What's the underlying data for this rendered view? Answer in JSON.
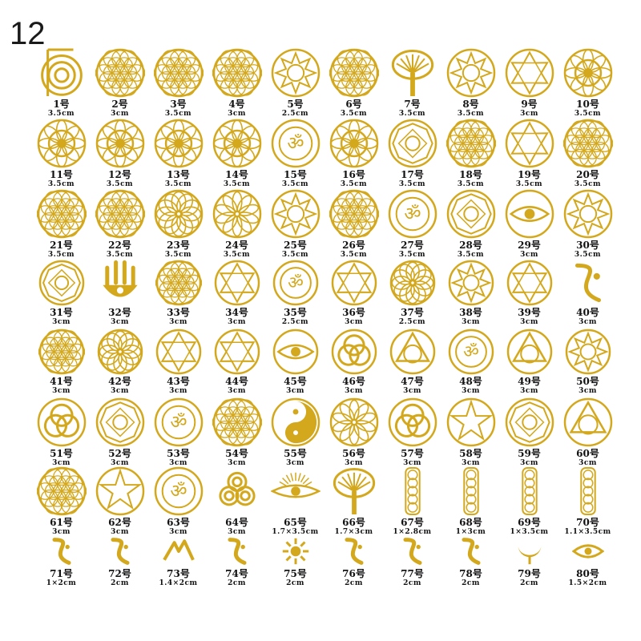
{
  "page_number": "12",
  "colors": {
    "gold": "#d4a81c",
    "gold_dark": "#b58a10",
    "text": "#111111"
  },
  "items": [
    {
      "label": "1号",
      "size": "3.5cm",
      "icon": "cho-ku-rei-spiral-icon"
    },
    {
      "label": "2号",
      "size": "3cm",
      "icon": "hexagon-flower-icon"
    },
    {
      "label": "3号",
      "size": "3.5cm",
      "icon": "flower-of-life-icon"
    },
    {
      "label": "4号",
      "size": "3cm",
      "icon": "flower-of-life-icon"
    },
    {
      "label": "5号",
      "size": "2.5cm",
      "icon": "star-circle-icon"
    },
    {
      "label": "6号",
      "size": "3.5cm",
      "icon": "flower-of-life-hexagon-icon"
    },
    {
      "label": "7号",
      "size": "3.5cm",
      "icon": "tree-of-life-icon"
    },
    {
      "label": "8号",
      "size": "3.5cm",
      "icon": "star-mandala-icon"
    },
    {
      "label": "9号",
      "size": "3cm",
      "icon": "star-of-david-mandala-icon"
    },
    {
      "label": "10号",
      "size": "3.5cm",
      "icon": "heart-chakra-lotus-icon"
    },
    {
      "label": "11号",
      "size": "3.5cm",
      "icon": "sacral-chakra-icon"
    },
    {
      "label": "12号",
      "size": "3.5cm",
      "icon": "throat-chakra-icon"
    },
    {
      "label": "13号",
      "size": "3.5cm",
      "icon": "solar-plexus-chakra-icon"
    },
    {
      "label": "14号",
      "size": "3.5cm",
      "icon": "third-eye-chakra-icon"
    },
    {
      "label": "15号",
      "size": "3.5cm",
      "icon": "om-lotus-icon"
    },
    {
      "label": "16号",
      "size": "3.5cm",
      "icon": "root-chakra-icon"
    },
    {
      "label": "17号",
      "size": "3.5cm",
      "icon": "metatron-cube-icon"
    },
    {
      "label": "18号",
      "size": "3.5cm",
      "icon": "yin-yang-flower-icon"
    },
    {
      "label": "19号",
      "size": "3.5cm",
      "icon": "merkaba-star-icon"
    },
    {
      "label": "20号",
      "size": "3.5cm",
      "icon": "flower-of-life-icon"
    },
    {
      "label": "21号",
      "size": "3.5cm",
      "icon": "flower-of-life-icon"
    },
    {
      "label": "22号",
      "size": "3.5cm",
      "icon": "hexagon-flower-icon"
    },
    {
      "label": "23号",
      "size": "3.5cm",
      "icon": "swirl-mandala-icon"
    },
    {
      "label": "24号",
      "size": "3.5cm",
      "icon": "lotus-mandala-icon"
    },
    {
      "label": "25号",
      "size": "3.5cm",
      "icon": "heart-star-lotus-icon"
    },
    {
      "label": "26号",
      "size": "3.5cm",
      "icon": "seed-of-life-circle-icon"
    },
    {
      "label": "27号",
      "size": "3.5cm",
      "icon": "om-lotus-icon"
    },
    {
      "label": "28号",
      "size": "3.5cm",
      "icon": "tree-of-life-circle-icon"
    },
    {
      "label": "29号",
      "size": "3cm",
      "icon": "eye-of-horus-icon"
    },
    {
      "label": "30号",
      "size": "3.5cm",
      "icon": "star-mandala-icon"
    },
    {
      "label": "31号",
      "size": "3cm",
      "icon": "metatron-cube-icon"
    },
    {
      "label": "32号",
      "size": "3cm",
      "icon": "hamsa-hand-icon"
    },
    {
      "label": "33号",
      "size": "3cm",
      "icon": "flower-of-life-icon"
    },
    {
      "label": "34号",
      "size": "3cm",
      "icon": "sri-yantra-icon"
    },
    {
      "label": "35号",
      "size": "2.5cm",
      "icon": "geometric-circle-icon"
    },
    {
      "label": "36号",
      "size": "3cm",
      "icon": "star-of-david-icon"
    },
    {
      "label": "37号",
      "size": "2.5cm",
      "icon": "swirl-circle-icon"
    },
    {
      "label": "38号",
      "size": "3cm",
      "icon": "star-circle-icon"
    },
    {
      "label": "39号",
      "size": "3cm",
      "icon": "merkaba-star-icon"
    },
    {
      "label": "40号",
      "size": "3cm",
      "icon": "reiki-symbol-icon"
    },
    {
      "label": "41号",
      "size": "3cm",
      "icon": "seed-of-life-icon"
    },
    {
      "label": "42号",
      "size": "3cm",
      "icon": "rosette-icon"
    },
    {
      "label": "43号",
      "size": "3cm",
      "icon": "star-of-david-mandala-icon"
    },
    {
      "label": "44号",
      "size": "3cm",
      "icon": "star-of-david-icon"
    },
    {
      "label": "45号",
      "size": "3cm",
      "icon": "eye-circle-icon"
    },
    {
      "label": "46号",
      "size": "3cm",
      "icon": "triple-circle-icon"
    },
    {
      "label": "47号",
      "size": "3cm",
      "icon": "triangle-circle-icon"
    },
    {
      "label": "48号",
      "size": "3cm",
      "icon": "geometric-circle-icon"
    },
    {
      "label": "49号",
      "size": "3cm",
      "icon": "alchemy-triangle-icon"
    },
    {
      "label": "50号",
      "size": "3cm",
      "icon": "star-mandala-icon"
    },
    {
      "label": "51号",
      "size": "3cm",
      "icon": "triquetra-icon"
    },
    {
      "label": "52号",
      "size": "3cm",
      "icon": "vegvisir-icon"
    },
    {
      "label": "53号",
      "size": "3cm",
      "icon": "om-circle-icon"
    },
    {
      "label": "54号",
      "size": "3cm",
      "icon": "flower-of-life-hexagon-icon"
    },
    {
      "label": "55号",
      "size": "3cm",
      "icon": "yin-yang-icon"
    },
    {
      "label": "56号",
      "size": "3cm",
      "icon": "lotus-circle-icon"
    },
    {
      "label": "57号",
      "size": "3cm",
      "icon": "knot-icon"
    },
    {
      "label": "58号",
      "size": "3cm",
      "icon": "pentagram-circle-icon"
    },
    {
      "label": "59号",
      "size": "3cm",
      "icon": "bagua-icon"
    },
    {
      "label": "60号",
      "size": "3cm",
      "icon": "eye-pyramid-icon"
    },
    {
      "label": "61号",
      "size": "3cm",
      "icon": "flower-of-life-icon"
    },
    {
      "label": "62号",
      "size": "3cm",
      "icon": "pentagram-circle-icon"
    },
    {
      "label": "63号",
      "size": "3cm",
      "icon": "atom-circle-icon"
    },
    {
      "label": "64号",
      "size": "3cm",
      "icon": "triskele-icon"
    },
    {
      "label": "65号",
      "size": "1.7×3.5cm",
      "icon": "radiant-eye-icon"
    },
    {
      "label": "66号",
      "size": "1.7×3cm",
      "icon": "tree-icon"
    },
    {
      "label": "67号",
      "size": "1×2.8cm",
      "icon": "metatron-column-icon"
    },
    {
      "label": "68号",
      "size": "1×3cm",
      "icon": "flower-of-life-column-icon"
    },
    {
      "label": "69号",
      "size": "1×3.5cm",
      "icon": "geometric-column-icon"
    },
    {
      "label": "70号",
      "size": "1.1×3.5cm",
      "icon": "flower-of-life-column-icon"
    },
    {
      "label": "71号",
      "size": "1×2cm",
      "icon": "rune-symbol-icon"
    },
    {
      "label": "72号",
      "size": "2cm",
      "icon": "fish-symbol-icon"
    },
    {
      "label": "73号",
      "size": "1.4×2cm",
      "icon": "mountain-symbol-icon"
    },
    {
      "label": "74号",
      "size": "2cm",
      "icon": "s-symbol-icon"
    },
    {
      "label": "75号",
      "size": "2cm",
      "icon": "sun-symbol-icon"
    },
    {
      "label": "76号",
      "size": "2cm",
      "icon": "moon-symbol-icon"
    },
    {
      "label": "77号",
      "size": "2cm",
      "icon": "wave-symbol-icon"
    },
    {
      "label": "78号",
      "size": "2cm",
      "icon": "hook-symbol-icon"
    },
    {
      "label": "79号",
      "size": "2cm",
      "icon": "crescent-symbol-icon"
    },
    {
      "label": "80号",
      "size": "1.5×2cm",
      "icon": "eye-symbol-icon"
    }
  ]
}
